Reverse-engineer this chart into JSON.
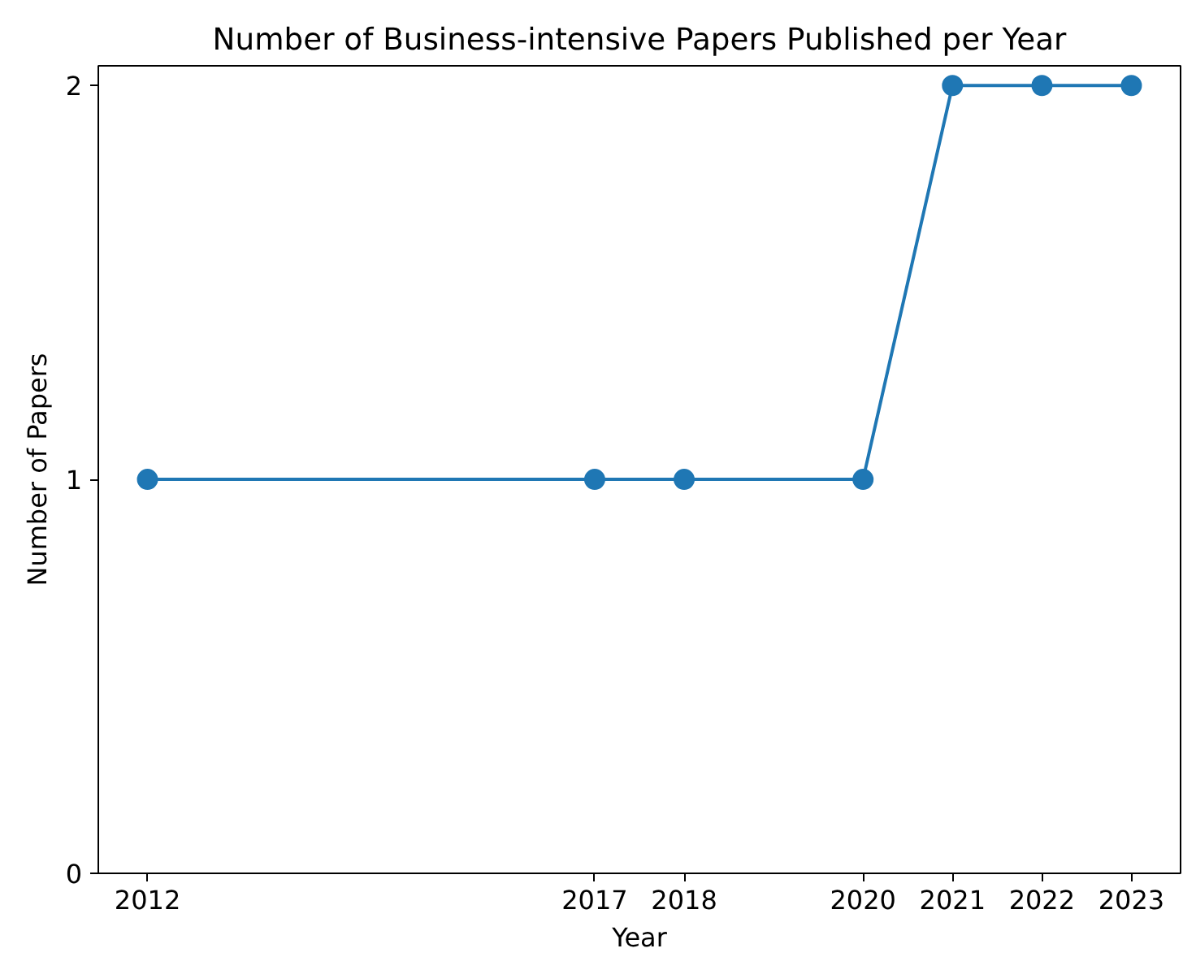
{
  "chart_data": {
    "type": "line",
    "title": "Number of Business-intensive Papers Published per Year",
    "xlabel": "Year",
    "ylabel": "Number of Papers",
    "x": [
      2012,
      2017,
      2018,
      2020,
      2021,
      2022,
      2023
    ],
    "series": [
      {
        "color": "#1f77b4",
        "values": [
          1,
          1,
          1,
          1,
          2,
          2,
          2
        ]
      }
    ],
    "xlim": [
      2011.45,
      2023.55
    ],
    "xticks": [
      2012,
      2017,
      2018,
      2020,
      2021,
      2022,
      2023
    ],
    "ylim": [
      0,
      2.05
    ],
    "yticks": [
      0,
      1,
      2
    ],
    "grid": false,
    "marker": "circle",
    "line_style": "solid"
  }
}
